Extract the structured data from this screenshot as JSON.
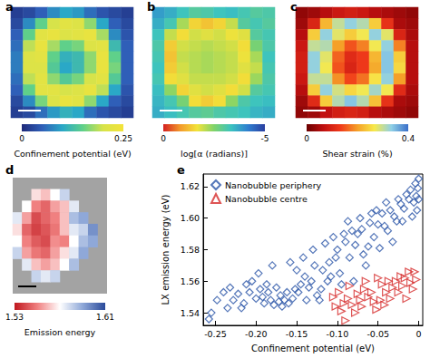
{
  "chart_data": [
    {
      "type": "heatmap",
      "title": "a",
      "tick_labels": false,
      "colorbar_label": "Confinement potential (eV)",
      "colorbar_range": [
        0,
        0.25
      ],
      "colorbar_ticks": [
        0,
        0.25
      ],
      "cells": [
        [
          0.02,
          0.03,
          0.05,
          0.08,
          0.1,
          0.09,
          0.06,
          0.04,
          0.03,
          0.02
        ],
        [
          0.03,
          0.08,
          0.15,
          0.2,
          0.22,
          0.21,
          0.17,
          0.1,
          0.05,
          0.03
        ],
        [
          0.05,
          0.15,
          0.22,
          0.23,
          0.21,
          0.22,
          0.23,
          0.18,
          0.08,
          0.04
        ],
        [
          0.06,
          0.19,
          0.23,
          0.18,
          0.15,
          0.16,
          0.21,
          0.22,
          0.12,
          0.05
        ],
        [
          0.07,
          0.21,
          0.22,
          0.15,
          0.11,
          0.12,
          0.17,
          0.23,
          0.15,
          0.05
        ],
        [
          0.07,
          0.21,
          0.21,
          0.14,
          0.1,
          0.12,
          0.17,
          0.23,
          0.16,
          0.05
        ],
        [
          0.06,
          0.19,
          0.22,
          0.17,
          0.14,
          0.16,
          0.2,
          0.22,
          0.14,
          0.05
        ],
        [
          0.05,
          0.15,
          0.22,
          0.22,
          0.2,
          0.21,
          0.23,
          0.19,
          0.1,
          0.04
        ],
        [
          0.03,
          0.08,
          0.16,
          0.21,
          0.23,
          0.22,
          0.17,
          0.1,
          0.05,
          0.03
        ],
        [
          0.02,
          0.03,
          0.06,
          0.09,
          0.11,
          0.1,
          0.06,
          0.04,
          0.03,
          0.02
        ]
      ]
    },
    {
      "type": "heatmap",
      "title": "b",
      "tick_labels": false,
      "colorbar_label": "log[α (radians)]",
      "colorbar_range": [
        0,
        -5
      ],
      "colorbar_ticks": [
        0,
        -5
      ],
      "cells": [
        [
          -3.8,
          -3.6,
          -3.3,
          -3.0,
          -3.1,
          -3.3,
          -3.4,
          -3.2,
          -3.0,
          -3.1
        ],
        [
          -3.6,
          -3.2,
          -2.2,
          -1.5,
          -1.3,
          -1.5,
          -2.0,
          -3.0,
          -3.2,
          -3.0
        ],
        [
          -3.3,
          -2.0,
          -1.6,
          -1.9,
          -1.8,
          -1.9,
          -1.7,
          -1.8,
          -3.0,
          -3.2
        ],
        [
          -3.1,
          -1.4,
          -1.9,
          -2.0,
          -2.1,
          -2.0,
          -1.9,
          -1.6,
          -2.6,
          -3.1
        ],
        [
          -3.2,
          -1.3,
          -2.0,
          -2.1,
          -2.2,
          -2.1,
          -2.0,
          -1.7,
          -2.2,
          -3.3
        ],
        [
          -3.3,
          -1.4,
          -1.9,
          -2.1,
          -2.2,
          -2.1,
          -2.0,
          -1.8,
          -2.0,
          -3.2
        ],
        [
          -3.2,
          -1.6,
          -1.8,
          -2.0,
          -2.0,
          -2.0,
          -1.9,
          -1.6,
          -2.3,
          -3.1
        ],
        [
          -3.4,
          -2.4,
          -1.5,
          -1.8,
          -1.9,
          -1.8,
          -1.6,
          -1.9,
          -3.0,
          -3.2
        ],
        [
          -3.5,
          -3.2,
          -2.6,
          -1.6,
          -1.4,
          -1.6,
          -2.4,
          -3.1,
          -3.3,
          -3.4
        ],
        [
          -3.6,
          -3.4,
          -3.2,
          -3.0,
          -2.9,
          -3.1,
          -3.2,
          -3.3,
          -3.5,
          -3.6
        ]
      ]
    },
    {
      "type": "heatmap",
      "title": "c",
      "tick_labels": false,
      "colorbar_label": "Shear strain (%)",
      "colorbar_range": [
        0,
        0.4
      ],
      "colorbar_ticks": [
        0,
        0.4
      ],
      "cells": [
        [
          0.03,
          0.04,
          0.06,
          0.08,
          0.09,
          0.08,
          0.06,
          0.05,
          0.04,
          0.03
        ],
        [
          0.04,
          0.1,
          0.22,
          0.3,
          0.33,
          0.31,
          0.24,
          0.12,
          0.05,
          0.04
        ],
        [
          0.06,
          0.24,
          0.33,
          0.28,
          0.24,
          0.27,
          0.33,
          0.28,
          0.1,
          0.05
        ],
        [
          0.08,
          0.3,
          0.31,
          0.2,
          0.15,
          0.18,
          0.27,
          0.33,
          0.18,
          0.06
        ],
        [
          0.09,
          0.33,
          0.28,
          0.16,
          0.11,
          0.13,
          0.22,
          0.34,
          0.24,
          0.06
        ],
        [
          0.09,
          0.33,
          0.27,
          0.15,
          0.1,
          0.13,
          0.21,
          0.34,
          0.25,
          0.06
        ],
        [
          0.08,
          0.3,
          0.3,
          0.19,
          0.14,
          0.17,
          0.26,
          0.33,
          0.2,
          0.06
        ],
        [
          0.06,
          0.24,
          0.33,
          0.29,
          0.25,
          0.27,
          0.32,
          0.27,
          0.11,
          0.05
        ],
        [
          0.04,
          0.11,
          0.24,
          0.31,
          0.34,
          0.31,
          0.23,
          0.12,
          0.05,
          0.04
        ],
        [
          0.03,
          0.04,
          0.07,
          0.09,
          0.1,
          0.09,
          0.06,
          0.05,
          0.04,
          0.03
        ]
      ]
    },
    {
      "type": "heatmap",
      "title": "d",
      "tick_labels": false,
      "colorbar_label": "Emission energy",
      "colorbar_range": [
        1.53,
        1.61
      ],
      "colorbar_ticks": [
        1.53,
        1.61
      ],
      "cells": [
        [
          null,
          null,
          null,
          null,
          null,
          null,
          null,
          null,
          null,
          null
        ],
        [
          null,
          null,
          1.565,
          1.56,
          1.57,
          1.58,
          null,
          null,
          null,
          null
        ],
        [
          null,
          1.57,
          1.55,
          1.545,
          1.555,
          1.56,
          1.575,
          null,
          null,
          null
        ],
        [
          1.575,
          1.555,
          1.54,
          1.545,
          1.55,
          1.56,
          1.585,
          1.59,
          null,
          null
        ],
        [
          1.565,
          1.545,
          1.538,
          1.542,
          1.548,
          1.56,
          1.575,
          1.58,
          1.595,
          null
        ],
        [
          1.57,
          1.55,
          1.543,
          1.54,
          1.552,
          1.55,
          1.57,
          1.585,
          1.59,
          null
        ],
        [
          1.58,
          1.555,
          1.548,
          1.545,
          1.555,
          1.565,
          1.575,
          1.59,
          null,
          null
        ],
        [
          null,
          1.575,
          1.56,
          1.555,
          1.56,
          1.57,
          1.585,
          null,
          null,
          null
        ],
        [
          null,
          null,
          1.58,
          1.575,
          1.58,
          null,
          null,
          null,
          null,
          null
        ],
        [
          null,
          null,
          null,
          null,
          null,
          null,
          null,
          null,
          null,
          null
        ]
      ]
    },
    {
      "type": "scatter",
      "title": "e",
      "x_label": "Confinement potential (eV)",
      "y_label": "LX emission energy (eV)",
      "xlim": [
        -0.265,
        0.005
      ],
      "xticks": [
        -0.25,
        {
          "value": -0.2,
          "label": "-0.20"
        },
        -0.15,
        {
          "value": -0.1,
          "label": "-0.10"
        },
        -0.05,
        0
      ],
      "ylim": [
        1.532,
        1.628
      ],
      "yticks": [
        1.54,
        1.56,
        1.58,
        {
          "value": 1.6,
          "label": "1.60"
        },
        1.62
      ],
      "grid": false,
      "legend": "upper left",
      "series": [
        {
          "name": "Nanobubble periphery",
          "color": "#2b55a8",
          "marker": "diamond",
          "values": [
            [
              -0.258,
              1.536
            ],
            [
              -0.255,
              1.54
            ],
            [
              -0.248,
              1.548
            ],
            [
              -0.24,
              1.553
            ],
            [
              -0.235,
              1.543
            ],
            [
              -0.232,
              1.556
            ],
            [
              -0.228,
              1.548
            ],
            [
              -0.222,
              1.552
            ],
            [
              -0.218,
              1.543
            ],
            [
              -0.215,
              1.546
            ],
            [
              -0.212,
              1.558
            ],
            [
              -0.208,
              1.553
            ],
            [
              -0.205,
              1.56
            ],
            [
              -0.2,
              1.549
            ],
            [
              -0.197,
              1.565
            ],
            [
              -0.195,
              1.555
            ],
            [
              -0.192,
              1.55
            ],
            [
              -0.19,
              1.546
            ],
            [
              -0.187,
              1.558
            ],
            [
              -0.185,
              1.553
            ],
            [
              -0.182,
              1.548
            ],
            [
              -0.18,
              1.57
            ],
            [
              -0.178,
              1.545
            ],
            [
              -0.175,
              1.556
            ],
            [
              -0.172,
              1.547
            ],
            [
              -0.17,
              1.551
            ],
            [
              -0.168,
              1.544
            ],
            [
              -0.165,
              1.548
            ],
            [
              -0.162,
              1.553
            ],
            [
              -0.16,
              1.546
            ],
            [
              -0.158,
              1.572
            ],
            [
              -0.155,
              1.549
            ],
            [
              -0.152,
              1.555
            ],
            [
              -0.15,
              1.567
            ],
            [
              -0.148,
              1.553
            ],
            [
              -0.145,
              1.558
            ],
            [
              -0.142,
              1.575
            ],
            [
              -0.14,
              1.563
            ],
            [
              -0.138,
              1.548
            ],
            [
              -0.135,
              1.556
            ],
            [
              -0.132,
              1.56
            ],
            [
              -0.13,
              1.58
            ],
            [
              -0.128,
              1.57
            ],
            [
              -0.125,
              1.551
            ],
            [
              -0.122,
              1.548
            ],
            [
              -0.12,
              1.555
            ],
            [
              -0.118,
              1.567
            ],
            [
              -0.115,
              1.584
            ],
            [
              -0.112,
              1.56
            ],
            [
              -0.11,
              1.572
            ],
            [
              -0.108,
              1.563
            ],
            [
              -0.105,
              1.588
            ],
            [
              -0.102,
              1.575
            ],
            [
              -0.1,
              1.58
            ],
            [
              -0.097,
              1.565
            ],
            [
              -0.095,
              1.558
            ],
            [
              -0.092,
              1.59
            ],
            [
              -0.09,
              1.585
            ],
            [
              -0.087,
              1.598
            ],
            [
              -0.085,
              1.575
            ],
            [
              -0.082,
              1.592
            ],
            [
              -0.08,
              1.56
            ],
            [
              -0.078,
              1.583
            ],
            [
              -0.075,
              1.59
            ],
            [
              -0.072,
              1.6
            ],
            [
              -0.07,
              1.593
            ],
            [
              -0.068,
              1.577
            ],
            [
              -0.065,
              1.57
            ],
            [
              -0.062,
              1.582
            ],
            [
              -0.06,
              1.597
            ],
            [
              -0.058,
              1.603
            ],
            [
              -0.055,
              1.588
            ],
            [
              -0.052,
              1.605
            ],
            [
              -0.05,
              1.596
            ],
            [
              -0.048,
              1.581
            ],
            [
              -0.045,
              1.603
            ],
            [
              -0.042,
              1.595
            ],
            [
              -0.04,
              1.61
            ],
            [
              -0.038,
              1.592
            ],
            [
              -0.035,
              1.605
            ],
            [
              -0.032,
              1.585
            ],
            [
              -0.03,
              1.601
            ],
            [
              -0.027,
              1.598
            ],
            [
              -0.025,
              1.612
            ],
            [
              -0.022,
              1.609
            ],
            [
              -0.02,
              1.598
            ],
            [
              -0.018,
              1.606
            ],
            [
              -0.015,
              1.615
            ],
            [
              -0.012,
              1.612
            ],
            [
              -0.01,
              1.618
            ],
            [
              -0.008,
              1.601
            ],
            [
              -0.006,
              1.61
            ],
            [
              -0.004,
              1.622
            ],
            [
              -0.003,
              1.614
            ],
            [
              -0.002,
              1.605
            ],
            [
              -0.001,
              1.619
            ],
            [
              0.0,
              1.625
            ],
            [
              0.0,
              1.612
            ]
          ]
        },
        {
          "name": "Nanobubble centre",
          "color": "#d62a2a",
          "marker": "triangle-right",
          "values": [
            [
              -0.105,
              1.55
            ],
            [
              -0.102,
              1.544
            ],
            [
              -0.098,
              1.553
            ],
            [
              -0.095,
              1.541
            ],
            [
              -0.092,
              1.546
            ],
            [
              -0.09,
              1.535
            ],
            [
              -0.087,
              1.549
            ],
            [
              -0.085,
              1.557
            ],
            [
              -0.082,
              1.545
            ],
            [
              -0.078,
              1.54
            ],
            [
              -0.075,
              1.552
            ],
            [
              -0.072,
              1.548
            ],
            [
              -0.07,
              1.544
            ],
            [
              -0.067,
              1.555
            ],
            [
              -0.065,
              1.56
            ],
            [
              -0.062,
              1.55
            ],
            [
              -0.058,
              1.553
            ],
            [
              -0.055,
              1.547
            ],
            [
              -0.052,
              1.542
            ],
            [
              -0.05,
              1.562
            ],
            [
              -0.047,
              1.548
            ],
            [
              -0.045,
              1.558
            ],
            [
              -0.042,
              1.545
            ],
            [
              -0.04,
              1.553
            ],
            [
              -0.037,
              1.56
            ],
            [
              -0.035,
              1.549
            ],
            [
              -0.032,
              1.556
            ],
            [
              -0.028,
              1.56
            ],
            [
              -0.025,
              1.553
            ],
            [
              -0.022,
              1.563
            ],
            [
              -0.02,
              1.557
            ],
            [
              -0.017,
              1.562
            ],
            [
              -0.015,
              1.549
            ],
            [
              -0.012,
              1.566
            ],
            [
              -0.01,
              1.559
            ],
            [
              -0.007,
              1.555
            ],
            [
              -0.005,
              1.566
            ],
            [
              -0.003,
              1.561
            ]
          ]
        }
      ]
    }
  ]
}
